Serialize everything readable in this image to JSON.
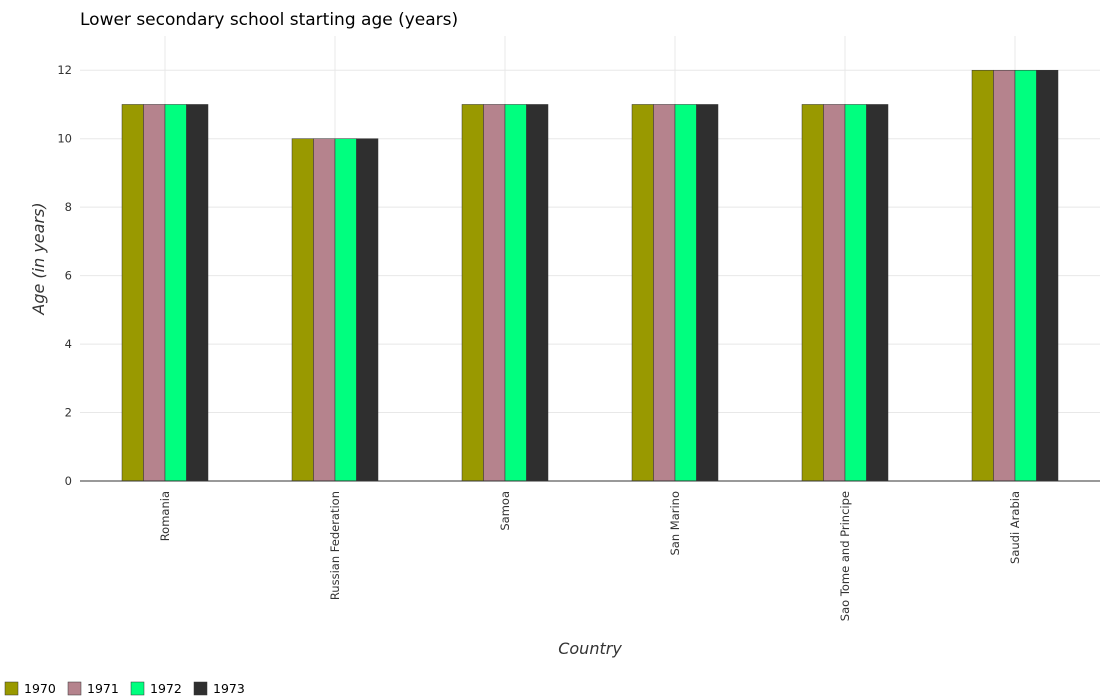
{
  "chart_data": {
    "type": "bar",
    "title": "Lower secondary school starting age (years)",
    "xlabel": "Country",
    "ylabel": "Age (in years)",
    "categories": [
      "Romania",
      "Russian Federation",
      "Samoa",
      "San Marino",
      "Sao Tome and Principe",
      "Saudi Arabia"
    ],
    "series": [
      {
        "name": "1970",
        "color": "#999900",
        "values": [
          11,
          10,
          11,
          11,
          11,
          12
        ]
      },
      {
        "name": "1971",
        "color": "#b5838d",
        "values": [
          11,
          10,
          11,
          11,
          11,
          12
        ]
      },
      {
        "name": "1972",
        "color": "#00ff7f",
        "values": [
          11,
          10,
          11,
          11,
          11,
          12
        ]
      },
      {
        "name": "1973",
        "color": "#2f2f2f",
        "values": [
          11,
          10,
          11,
          11,
          11,
          12
        ]
      }
    ],
    "ylim": [
      0,
      13
    ],
    "yticks": [
      0,
      2,
      4,
      6,
      8,
      10,
      12
    ],
    "grid": true,
    "legend_position": "bottom-left"
  }
}
